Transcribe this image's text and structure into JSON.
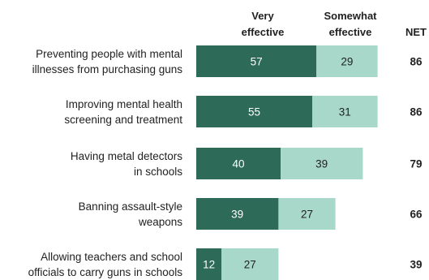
{
  "chart_data": {
    "type": "bar",
    "stacked": true,
    "orientation": "horizontal",
    "headers": {
      "very": [
        "Very",
        "effective"
      ],
      "somewhat": [
        "Somewhat",
        "effective"
      ],
      "net": "NET"
    },
    "categories": [
      [
        "Preventing people with mental",
        "illnesses from purchasing guns"
      ],
      [
        "Improving mental health",
        "screening and treatment"
      ],
      [
        "Having metal detectors",
        "in schools"
      ],
      [
        "Banning assault-style",
        "weapons"
      ],
      [
        "Allowing teachers and school",
        "officials to carry guns in schools"
      ]
    ],
    "series": [
      {
        "name": "Very effective",
        "values": [
          57,
          55,
          40,
          39,
          12
        ]
      },
      {
        "name": "Somewhat effective",
        "values": [
          29,
          31,
          39,
          27,
          27
        ]
      }
    ],
    "net": [
      86,
      86,
      79,
      66,
      39
    ],
    "colors": {
      "very": "#2d6a58",
      "somewhat": "#a8d8c9",
      "very_text": "#ffffff",
      "somewhat_text": "#222222"
    }
  }
}
